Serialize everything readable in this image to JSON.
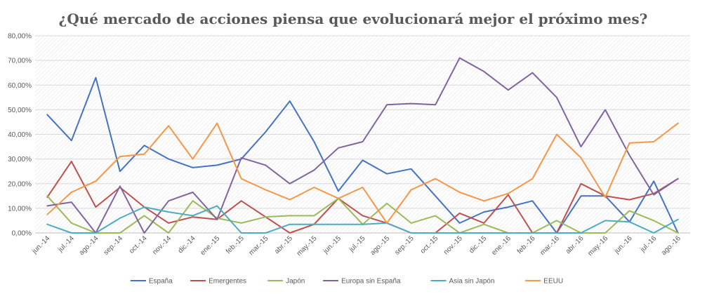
{
  "chart_data": {
    "type": "line",
    "title": "¿Qué mercado de acciones piensa que evolucionará mejor el próximo mes?",
    "xlabel": "",
    "ylabel": "",
    "ylim": [
      0,
      80
    ],
    "y_ticks": [
      "0,00%",
      "10,00%",
      "20,00%",
      "30,00%",
      "40,00%",
      "50,00%",
      "60,00%",
      "70,00%",
      "80,00%"
    ],
    "grid": true,
    "legend_position": "bottom",
    "categories": [
      "jun.-14",
      "jul.-14",
      "ago.-14",
      "sep.-14",
      "oct.-14",
      "nov.-14",
      "dic.-14",
      "ene.-15",
      "feb.-15",
      "mar.-15",
      "abr.-15",
      "may.-15",
      "jun.-15",
      "jul.-15",
      "ago.-15",
      "sep.-15",
      "oct.-15",
      "nov.-15",
      "dic.-15",
      "ene.-16",
      "feb.-16",
      "mar.-16",
      "abr.-16",
      "may.-16",
      "jun.-16",
      "jul.-16",
      "ago.-16"
    ],
    "series": [
      {
        "name": "España",
        "color": "#4472C4",
        "values": [
          48,
          37.5,
          63,
          25,
          35.5,
          30,
          26.5,
          27.5,
          30,
          41,
          53.5,
          37,
          17,
          29.5,
          24,
          26,
          15,
          4,
          8.5,
          10.5,
          13,
          0,
          15,
          15,
          4.5,
          21,
          0
        ]
      },
      {
        "name": "Emergentes",
        "color": "#C0504D",
        "values": [
          14.5,
          29,
          10.5,
          18.5,
          10.5,
          4,
          6.5,
          5.5,
          13,
          6.5,
          0,
          3.5,
          14,
          7,
          4,
          0,
          0,
          8,
          4,
          15.5,
          0,
          0,
          20,
          15,
          13.5,
          16,
          22
        ]
      },
      {
        "name": "Japón",
        "color": "#9BBB59",
        "values": [
          15,
          4,
          0,
          0,
          7,
          0,
          13,
          6,
          4,
          6.5,
          7,
          7,
          14,
          3.5,
          12,
          4,
          7,
          0,
          3.5,
          0,
          0,
          5,
          0,
          0,
          9,
          5,
          0
        ]
      },
      {
        "name": "Europa sin España",
        "color": "#8064A2",
        "values": [
          11,
          12.5,
          0,
          19,
          0,
          13,
          16.5,
          5.5,
          30.5,
          27.5,
          20,
          25.5,
          34.5,
          37,
          52,
          52.5,
          52,
          71,
          65.5,
          58,
          65,
          55,
          35,
          50,
          31.5,
          15.5,
          22
        ]
      },
      {
        "name": "Asia sin Japón",
        "color": "#4BACC6",
        "values": [
          3.5,
          0,
          0,
          6,
          10.5,
          8.5,
          7,
          11,
          0,
          0,
          3.5,
          3.5,
          3.5,
          3.5,
          4,
          0,
          0,
          0,
          0,
          0,
          0,
          0,
          0,
          5,
          4.5,
          0,
          5.5
        ]
      },
      {
        "name": "EEUU",
        "color": "#F79646",
        "values": [
          7.5,
          16.5,
          21,
          31,
          32,
          43.5,
          30,
          44.5,
          22,
          17.5,
          13.5,
          18.5,
          14,
          18.5,
          4,
          17.5,
          22,
          16.5,
          13,
          16,
          22,
          40,
          30.5,
          14.5,
          36.5,
          37,
          44.5
        ]
      }
    ]
  }
}
